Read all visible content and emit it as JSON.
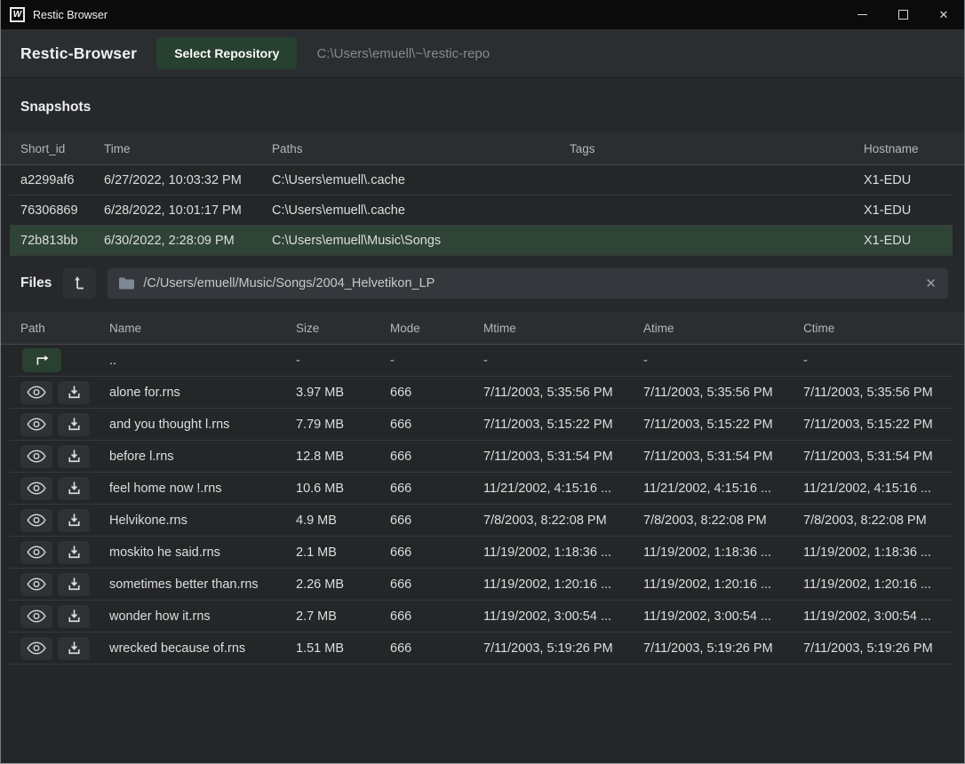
{
  "window": {
    "title": "Restic Browser",
    "logo_letter": "W"
  },
  "icons": {
    "close_glyph": "✕",
    "clear_glyph": "✕"
  },
  "header": {
    "app_title": "Restic-Browser",
    "select_repo_label": "Select Repository",
    "repo_path": "C:\\Users\\emuell\\~\\restic-repo"
  },
  "snapshots": {
    "section_title": "Snapshots",
    "columns": [
      "Short_id",
      "Time",
      "Paths",
      "Tags",
      "Hostname"
    ],
    "rows": [
      {
        "short_id": "a2299af6",
        "time": "6/27/2022, 10:03:32 PM",
        "paths": "C:\\Users\\emuell\\.cache",
        "tags": "",
        "hostname": "X1-EDU",
        "selected": false
      },
      {
        "short_id": "76306869",
        "time": "6/28/2022, 10:01:17 PM",
        "paths": "C:\\Users\\emuell\\.cache",
        "tags": "",
        "hostname": "X1-EDU",
        "selected": false
      },
      {
        "short_id": "72b813bb",
        "time": "6/30/2022, 2:28:09 PM",
        "paths": "C:\\Users\\emuell\\Music\\Songs",
        "tags": "",
        "hostname": "X1-EDU",
        "selected": true
      }
    ]
  },
  "files": {
    "section_title": "Files",
    "path_value": "/C/Users/emuell/Music/Songs/2004_Helvetikon_LP",
    "columns": [
      "Path",
      "Name",
      "Size",
      "Mode",
      "Mtime",
      "Atime",
      "Ctime"
    ],
    "parent_row": {
      "name": "..",
      "size": "-",
      "mode": "-",
      "mtime": "-",
      "atime": "-",
      "ctime": "-"
    },
    "rows": [
      {
        "name": "alone for.rns",
        "size": "3.97 MB",
        "mode": "666",
        "mtime": "7/11/2003, 5:35:56 PM",
        "atime": "7/11/2003, 5:35:56 PM",
        "ctime": "7/11/2003, 5:35:56 PM"
      },
      {
        "name": "and you thought l.rns",
        "size": "7.79 MB",
        "mode": "666",
        "mtime": "7/11/2003, 5:15:22 PM",
        "atime": "7/11/2003, 5:15:22 PM",
        "ctime": "7/11/2003, 5:15:22 PM"
      },
      {
        "name": "before l.rns",
        "size": "12.8 MB",
        "mode": "666",
        "mtime": "7/11/2003, 5:31:54 PM",
        "atime": "7/11/2003, 5:31:54 PM",
        "ctime": "7/11/2003, 5:31:54 PM"
      },
      {
        "name": "feel home now !.rns",
        "size": "10.6 MB",
        "mode": "666",
        "mtime": "11/21/2002, 4:15:16 ...",
        "atime": "11/21/2002, 4:15:16 ...",
        "ctime": "11/21/2002, 4:15:16 ..."
      },
      {
        "name": "Helvikone.rns",
        "size": "4.9 MB",
        "mode": "666",
        "mtime": "7/8/2003, 8:22:08 PM",
        "atime": "7/8/2003, 8:22:08 PM",
        "ctime": "7/8/2003, 8:22:08 PM"
      },
      {
        "name": "moskito he said.rns",
        "size": "2.1 MB",
        "mode": "666",
        "mtime": "11/19/2002, 1:18:36 ...",
        "atime": "11/19/2002, 1:18:36 ...",
        "ctime": "11/19/2002, 1:18:36 ..."
      },
      {
        "name": "sometimes better than.rns",
        "size": "2.26 MB",
        "mode": "666",
        "mtime": "11/19/2002, 1:20:16 ...",
        "atime": "11/19/2002, 1:20:16 ...",
        "ctime": "11/19/2002, 1:20:16 ..."
      },
      {
        "name": "wonder how it.rns",
        "size": "2.7 MB",
        "mode": "666",
        "mtime": "11/19/2002, 3:00:54 ...",
        "atime": "11/19/2002, 3:00:54 ...",
        "ctime": "11/19/2002, 3:00:54 ..."
      },
      {
        "name": "wrecked because of.rns",
        "size": "1.51 MB",
        "mode": "666",
        "mtime": "7/11/2003, 5:19:26 PM",
        "atime": "7/11/2003, 5:19:26 PM",
        "ctime": "7/11/2003, 5:19:26 PM"
      }
    ]
  },
  "colors": {
    "accent_green": "#2a4132",
    "selected_row_green": "#2f4336",
    "titlebar_black": "#0b0b0b"
  }
}
